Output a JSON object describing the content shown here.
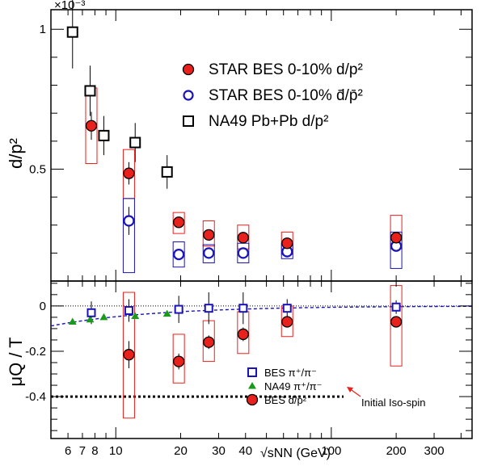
{
  "chart_data": [
    {
      "type": "scatter",
      "panel": "top",
      "ylabel": "d/p²",
      "exponent_label": "×10⁻³",
      "yticks": [
        "1",
        "0.5"
      ],
      "x_scale": "log",
      "xlim": [
        5.0,
        450
      ],
      "ylim": [
        0.0001,
        0.00107
      ],
      "legend": {
        "placement": "top-right",
        "entries": [
          "STAR BES 0-10% d/p²",
          "STAR BES 0-10% d̄/p̄²",
          "NA49 Pb+Pb d/p²"
        ]
      },
      "series": [
        {
          "name": "STAR BES 0-10% d/p²",
          "marker": "filled-circle",
          "color": "#e8211c",
          "points": [
            {
              "x": 7.7,
              "y": 0.000655,
              "stat": 5e-05,
              "sys_lo": 0.00052,
              "sys_hi": 0.00079
            },
            {
              "x": 11.5,
              "y": 0.000485,
              "stat": 4e-05,
              "sys_lo": 0.000395,
              "sys_hi": 0.00057
            },
            {
              "x": 19.6,
              "y": 0.00031,
              "stat": 2e-05,
              "sys_lo": 0.00027,
              "sys_hi": 0.000345
            },
            {
              "x": 27,
              "y": 0.000265,
              "stat": 2e-05,
              "sys_lo": 0.000225,
              "sys_hi": 0.000315
            },
            {
              "x": 39,
              "y": 0.000255,
              "stat": 2e-05,
              "sys_lo": 0.000215,
              "sys_hi": 0.0003
            },
            {
              "x": 62.4,
              "y": 0.000235,
              "stat": 1.5e-05,
              "sys_lo": 0.000195,
              "sys_hi": 0.000275
            },
            {
              "x": 200,
              "y": 0.000255,
              "stat": 1.5e-05,
              "sys_lo": 0.000215,
              "sys_hi": 0.000335
            }
          ]
        },
        {
          "name": "STAR BES 0-10% d̄/p̄²",
          "marker": "open-circle",
          "color": "#1a14b8",
          "points": [
            {
              "x": 11.5,
              "y": 0.000315,
              "stat": 5e-05,
              "sys_lo": 0.00013,
              "sys_hi": 0.000395
            },
            {
              "x": 19.6,
              "y": 0.000195,
              "stat": 2e-05,
              "sys_lo": 0.00015,
              "sys_hi": 0.00024
            },
            {
              "x": 27,
              "y": 0.0002,
              "stat": 2e-05,
              "sys_lo": 0.000165,
              "sys_hi": 0.00023
            },
            {
              "x": 39,
              "y": 0.0002,
              "stat": 2e-05,
              "sys_lo": 0.000165,
              "sys_hi": 0.000235
            },
            {
              "x": 62.4,
              "y": 0.000205,
              "stat": 2e-05,
              "sys_lo": 0.00018,
              "sys_hi": 0.000235
            },
            {
              "x": 200,
              "y": 0.000225,
              "stat": 2e-05,
              "sys_lo": 0.000145,
              "sys_hi": 0.000275
            }
          ]
        },
        {
          "name": "NA49 Pb+Pb d/p²",
          "marker": "open-square",
          "color": "#000000",
          "points": [
            {
              "x": 6.3,
              "y": 0.00099,
              "err": 0.00013
            },
            {
              "x": 7.6,
              "y": 0.00078,
              "err": 9e-05
            },
            {
              "x": 8.8,
              "y": 0.00062,
              "err": 7e-05
            },
            {
              "x": 12.3,
              "y": 0.000595,
              "err": 7e-05
            },
            {
              "x": 17.3,
              "y": 0.00049,
              "err": 6e-05
            }
          ]
        }
      ]
    },
    {
      "type": "scatter",
      "panel": "bottom",
      "ylabel": "μQ / T",
      "yticks": [
        "0",
        "-0.2",
        "-0.4"
      ],
      "xlabel": "√sNN (GeV)",
      "xticks": [
        "6",
        "7",
        "8",
        "10",
        "20",
        "30",
        "40",
        "100",
        "200",
        "300"
      ],
      "x_scale": "log",
      "xlim": [
        5.0,
        450
      ],
      "ylim": [
        -0.585,
        0.11
      ],
      "reference_lines": {
        "zero": {
          "y": 0,
          "style": "dotted"
        },
        "iso_spin": {
          "y": -0.4,
          "style": "thick-dotted",
          "label": "Initial Iso-spin"
        }
      },
      "fit_curve": {
        "style": "dashed",
        "color": "#1a14b8"
      },
      "legend": {
        "placement": "bottom-center",
        "entries": [
          "BES π⁺/π⁻",
          "NA49 π⁺/π⁻",
          "BES d/p²"
        ]
      },
      "series": [
        {
          "name": "BES π⁺/π⁻",
          "marker": "open-square",
          "color": "#1a14b8",
          "points": [
            {
              "x": 7.7,
              "y": -0.03,
              "err": 0.05
            },
            {
              "x": 11.5,
              "y": -0.02,
              "err": 0.05
            },
            {
              "x": 19.6,
              "y": -0.015,
              "err": 0.06
            },
            {
              "x": 27,
              "y": -0.01,
              "err": 0.07
            },
            {
              "x": 39,
              "y": -0.01,
              "err": 0.07
            },
            {
              "x": 62.4,
              "y": -0.01,
              "err": 0.04
            },
            {
              "x": 200,
              "y": -0.005,
              "err": 0.03
            }
          ]
        },
        {
          "name": "NA49 π⁺/π⁻",
          "marker": "filled-triangle",
          "color": "#1a9a1a",
          "points": [
            {
              "x": 6.3,
              "y": -0.07
            },
            {
              "x": 7.6,
              "y": -0.06
            },
            {
              "x": 8.8,
              "y": -0.05
            },
            {
              "x": 12.3,
              "y": -0.045
            },
            {
              "x": 17.3,
              "y": -0.035
            }
          ]
        },
        {
          "name": "BES d/p²",
          "marker": "filled-circle",
          "color": "#e8211c",
          "points": [
            {
              "x": 11.5,
              "y": -0.215,
              "stat": 0.06,
              "sys_lo": -0.495,
              "sys_hi": 0.06
            },
            {
              "x": 19.6,
              "y": -0.245,
              "stat": 0.035,
              "sys_lo": -0.34,
              "sys_hi": -0.125
            },
            {
              "x": 27,
              "y": -0.16,
              "stat": 0.03,
              "sys_lo": -0.245,
              "sys_hi": -0.065
            },
            {
              "x": 39,
              "y": -0.125,
              "stat": 0.03,
              "sys_lo": -0.21,
              "sys_hi": -0.025
            },
            {
              "x": 62.4,
              "y": -0.07,
              "stat": 0.025,
              "sys_lo": -0.135,
              "sys_hi": 0.0
            },
            {
              "x": 200,
              "y": -0.07,
              "stat": 0.025,
              "sys_lo": -0.265,
              "sys_hi": 0.09
            }
          ]
        }
      ]
    }
  ]
}
